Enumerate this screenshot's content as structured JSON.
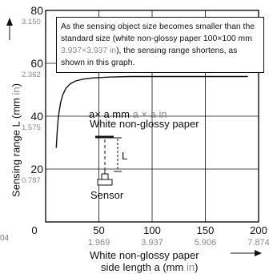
{
  "chart_data": {
    "type": "line",
    "x_label_1": "White non-glossy paper",
    "x_label_2": "side length a (mm ",
    "x_label_unit_in": "in",
    "x_label_close": ")",
    "y_label": "Sensing range L (mm ",
    "y_label_unit_in": "in",
    "y_label_close": ")",
    "x_ticks": [
      {
        "mm": "0",
        "in": ""
      },
      {
        "mm": "50",
        "in": "1.969"
      },
      {
        "mm": "100",
        "in": "3.937"
      },
      {
        "mm": "150",
        "in": "5.906"
      },
      {
        "mm": "200",
        "in": "7.874"
      }
    ],
    "y_ticks": [
      {
        "mm": "20",
        "in": "0.787"
      },
      {
        "mm": "40",
        "in": "1.575"
      },
      {
        "mm": "60",
        "in": "2.362"
      },
      {
        "mm": "80",
        "in": "3.150"
      }
    ],
    "xlim": [
      0,
      200
    ],
    "ylim": [
      0,
      80
    ],
    "grid": true,
    "series": [
      {
        "color": "#111111",
        "x": [
          10,
          11,
          12,
          14,
          16,
          19,
          23,
          28,
          35,
          45,
          60,
          80,
          100,
          140,
          180,
          190
        ],
        "y": [
          28,
          35,
          40,
          45,
          48,
          50.5,
          52.2,
          53.3,
          54,
          54.5,
          54.8,
          55,
          55,
          55,
          55,
          55
        ]
      }
    ],
    "annotation": {
      "text_1": "As the sensing object size becomes smaller than the standard size (white non-glossy paper 100",
      "times": "×",
      "text_2": "100 mm ",
      "gray_1": "3.937",
      "gray_times": "×",
      "gray_2": "3.937 in",
      "text_3": "), the sensing range shortens, as shown in this graph."
    },
    "diagram": {
      "target_label": "a",
      "times": "×",
      "target_label_2": " a mm ",
      "target_label_in": "a × a in",
      "paper_label": "White non-glossy paper",
      "distance_label": "L",
      "sensor_label": "Sensor"
    },
    "stray_text": "04"
  }
}
